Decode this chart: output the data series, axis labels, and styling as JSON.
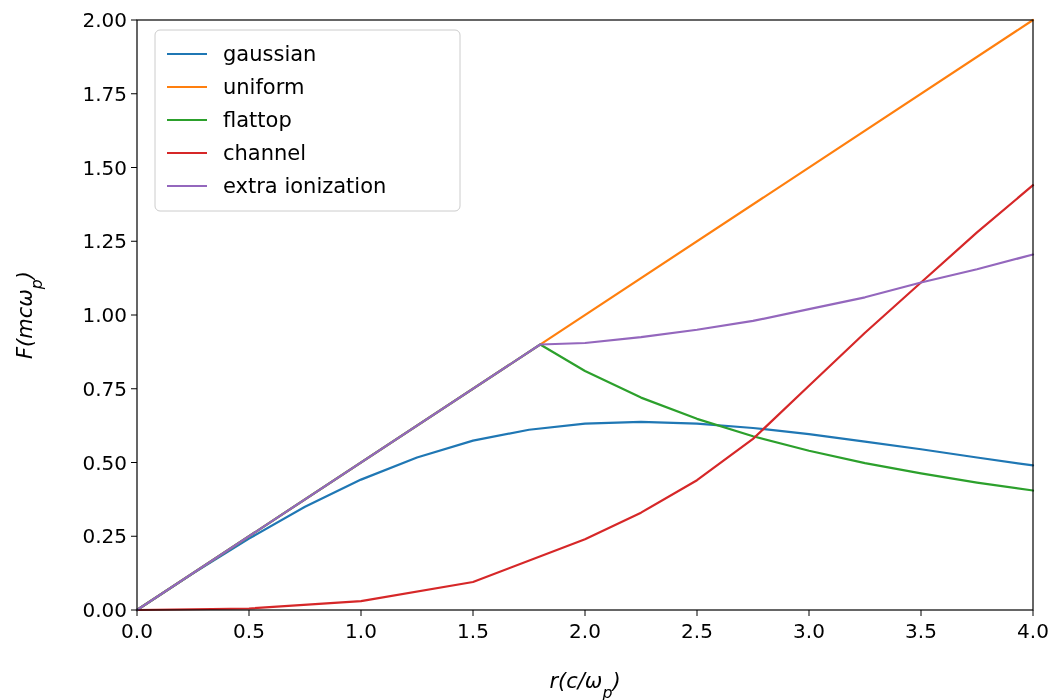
{
  "chart_data": {
    "type": "line",
    "xlabel": "r(c/ω$_{p}$)",
    "ylabel": "F(mcω$_{p}$)",
    "xlim": [
      0,
      4
    ],
    "ylim": [
      0,
      2
    ],
    "xticks": [
      {
        "value": 0,
        "label": "0.0"
      },
      {
        "value": 0.5,
        "label": "0.5"
      },
      {
        "value": 1,
        "label": "1.0"
      },
      {
        "value": 1.5,
        "label": "1.5"
      },
      {
        "value": 2,
        "label": "2.0"
      },
      {
        "value": 2.5,
        "label": "2.5"
      },
      {
        "value": 3,
        "label": "3.0"
      },
      {
        "value": 3.5,
        "label": "3.5"
      },
      {
        "value": 4,
        "label": "4.0"
      }
    ],
    "yticks": [
      {
        "value": 0,
        "label": "0.00"
      },
      {
        "value": 0.25,
        "label": "0.25"
      },
      {
        "value": 0.5,
        "label": "0.50"
      },
      {
        "value": 0.75,
        "label": "0.75"
      },
      {
        "value": 1,
        "label": "1.00"
      },
      {
        "value": 1.25,
        "label": "1.25"
      },
      {
        "value": 1.5,
        "label": "1.50"
      },
      {
        "value": 1.75,
        "label": "1.75"
      },
      {
        "value": 2,
        "label": "2.00"
      }
    ],
    "grid": false,
    "legend": "top left",
    "marker": "none",
    "line_style": "solid",
    "series": [
      {
        "name": "gaussian",
        "color": "#1f77b4",
        "x": [
          0,
          0.25,
          0.5,
          0.75,
          1,
          1.25,
          1.5,
          1.75,
          2,
          2.25,
          2.5,
          2.75,
          3,
          3.25,
          3.5,
          3.75,
          4
        ],
        "values": [
          0,
          0.124,
          0.242,
          0.35,
          0.442,
          0.517,
          0.574,
          0.611,
          0.632,
          0.638,
          0.632,
          0.617,
          0.596,
          0.571,
          0.545,
          0.517,
          0.49
        ]
      },
      {
        "name": "uniform",
        "color": "#ff7f0e",
        "x": [
          0,
          4
        ],
        "values": [
          0,
          2
        ]
      },
      {
        "name": "flattop",
        "color": "#2ca02c",
        "x": [
          0,
          1.8,
          2,
          2.25,
          2.5,
          2.75,
          3,
          3.25,
          3.5,
          3.75,
          4
        ],
        "values": [
          0,
          0.9,
          0.81,
          0.72,
          0.648,
          0.589,
          0.54,
          0.498,
          0.463,
          0.432,
          0.405
        ]
      },
      {
        "name": "channel",
        "color": "#d62728",
        "x": [
          0,
          0.5,
          1,
          1.5,
          2,
          2.25,
          2.5,
          2.75,
          3,
          3.25,
          3.5,
          3.75,
          4
        ],
        "values": [
          0,
          0.005,
          0.03,
          0.095,
          0.24,
          0.33,
          0.44,
          0.58,
          0.76,
          0.94,
          1.11,
          1.28,
          1.44
        ]
      },
      {
        "name": "extra ionization",
        "color": "#9467bd",
        "x": [
          0,
          1.8,
          2,
          2.25,
          2.5,
          2.75,
          3,
          3.25,
          3.5,
          3.75,
          4
        ],
        "values": [
          0,
          0.9,
          0.905,
          0.925,
          0.95,
          0.98,
          1.02,
          1.06,
          1.11,
          1.155,
          1.205
        ]
      }
    ]
  }
}
